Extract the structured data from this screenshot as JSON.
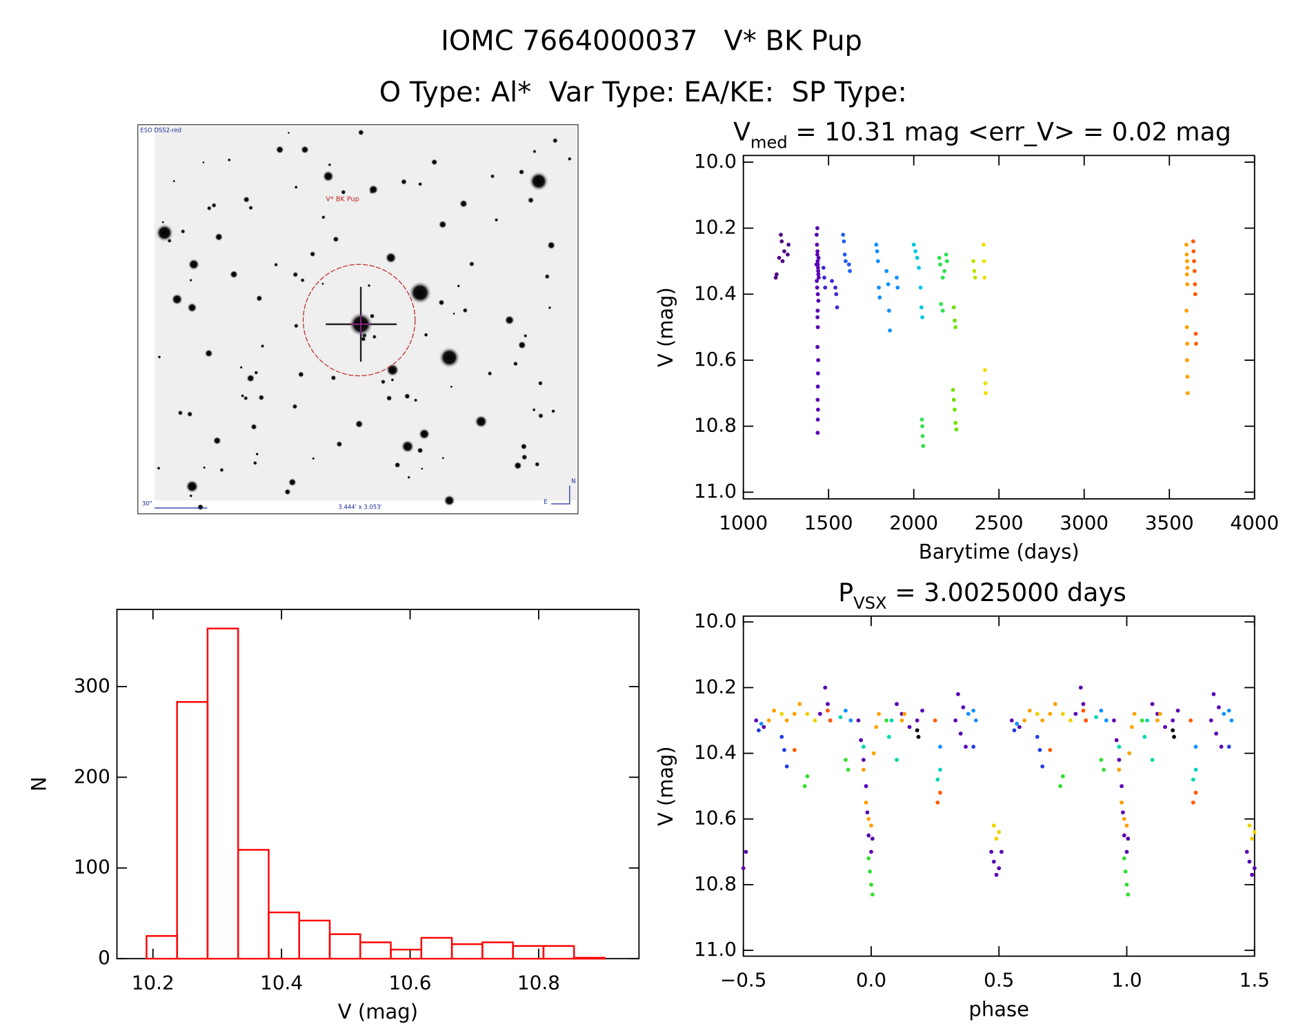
{
  "header": {
    "title": "IOMC 7664000037   V* BK Pup",
    "subtitle": "O Type: Al*  Var Type: EA/KE:  SP Type:"
  },
  "image": {
    "survey": "ESO DSS2-red",
    "target": "V* BK Pup",
    "scale": "30\"",
    "size": "3.444' x 3.053'",
    "north": "N",
    "east": "E"
  },
  "chart_data": [
    {
      "type": "scatter",
      "title": {
        "symbol": "V",
        "subscript": "med",
        "text": " = 10.31 mag <err_V> = 0.02 mag"
      },
      "xlabel": "Barytime (days)",
      "ylabel": "V (mag)",
      "xlim": [
        1000,
        4000
      ],
      "xticks": [
        1000,
        1500,
        2000,
        2500,
        3000,
        3500,
        4000
      ],
      "ylim": [
        11.0,
        10.0
      ],
      "yticks": [
        {
          "value": 10.0,
          "label": "10.0"
        },
        10.2,
        10.4,
        10.6,
        10.8,
        {
          "value": 11.0,
          "label": "11.0"
        }
      ],
      "series": [
        {
          "color": "#500a80",
          "x": [
            1190,
            1195,
            1210,
            1220,
            1225,
            1230,
            1240,
            1260,
            1265
          ],
          "values": [
            10.35,
            10.34,
            10.29,
            10.22,
            10.24,
            10.3,
            10.27,
            10.28,
            10.25
          ]
        },
        {
          "color": "#5a00b4",
          "x": [
            1430,
            1432,
            1434,
            1436,
            1438,
            1440,
            1431,
            1433,
            1435,
            1437,
            1439,
            1441,
            1442,
            1429,
            1434,
            1436,
            1437,
            1435,
            1438,
            1437,
            1436,
            1438,
            1437,
            1436,
            1439,
            1440,
            1437,
            1435
          ],
          "values": [
            10.22,
            10.25,
            10.28,
            10.3,
            10.32,
            10.34,
            10.36,
            10.38,
            10.27,
            10.31,
            10.33,
            10.29,
            10.35,
            10.31,
            10.2,
            10.45,
            10.5,
            10.56,
            10.64,
            10.68,
            10.72,
            10.75,
            10.78,
            10.82,
            10.6,
            10.42,
            10.4,
            10.47
          ]
        },
        {
          "color": "#3a2ad0",
          "x": [
            1470,
            1475,
            1480,
            1520,
            1540,
            1545,
            1550
          ],
          "values": [
            10.32,
            10.35,
            10.38,
            10.36,
            10.38,
            10.4,
            10.44
          ]
        },
        {
          "color": "#2060f0",
          "x": [
            1585,
            1590,
            1595,
            1600,
            1620,
            1625
          ],
          "values": [
            10.22,
            10.24,
            10.28,
            10.3,
            10.31,
            10.33
          ]
        },
        {
          "color": "#1090ff",
          "x": [
            1780,
            1785,
            1790,
            1795,
            1800,
            1840,
            1850,
            1855,
            1860,
            1900,
            1905
          ],
          "values": [
            10.25,
            10.27,
            10.3,
            10.38,
            10.41,
            10.33,
            10.37,
            10.45,
            10.51,
            10.35,
            10.38
          ]
        },
        {
          "color": "#00c8e0",
          "x": [
            2000,
            2010,
            2020,
            2030,
            2040,
            2045,
            2050
          ],
          "values": [
            10.25,
            10.27,
            10.29,
            10.32,
            10.38,
            10.44,
            10.47
          ]
        },
        {
          "color": "#30e050",
          "x": [
            2048,
            2050,
            2052,
            2055,
            2150,
            2155,
            2170,
            2180,
            2190,
            2195,
            2160,
            2170
          ],
          "values": [
            10.78,
            10.8,
            10.83,
            10.86,
            10.29,
            10.31,
            10.35,
            10.33,
            10.28,
            10.3,
            10.43,
            10.45
          ]
        },
        {
          "color": "#70e000",
          "x": [
            2230,
            2235,
            2240,
            2245,
            2250,
            2235,
            2240,
            2245
          ],
          "values": [
            10.69,
            10.72,
            10.75,
            10.79,
            10.81,
            10.44,
            10.48,
            10.5
          ]
        },
        {
          "color": "#c0e000",
          "x": [
            2350,
            2355,
            2360
          ],
          "values": [
            10.3,
            10.33,
            10.35
          ]
        },
        {
          "color": "#f0e000",
          "x": [
            2410,
            2412,
            2415,
            2418,
            2420,
            2422
          ],
          "values": [
            10.25,
            10.3,
            10.35,
            10.63,
            10.67,
            10.7
          ]
        },
        {
          "color": "#ffa000",
          "x": [
            3600,
            3602,
            3604,
            3606,
            3603,
            3605,
            3601,
            3603,
            3605,
            3604,
            3606,
            3607
          ],
          "values": [
            10.25,
            10.28,
            10.3,
            10.32,
            10.34,
            10.37,
            10.45,
            10.5,
            10.55,
            10.6,
            10.65,
            10.7
          ]
        },
        {
          "color": "#ff5a00",
          "x": [
            3640,
            3642,
            3645,
            3648,
            3650,
            3652,
            3655,
            3657
          ],
          "values": [
            10.24,
            10.27,
            10.3,
            10.33,
            10.37,
            10.4,
            10.52,
            10.55
          ]
        }
      ]
    },
    {
      "type": "histogram",
      "xlabel": "V (mag)",
      "ylabel": "N",
      "color": "#ff0000",
      "xlim": [
        10.144,
        10.956
      ],
      "xticks": [
        10.2,
        10.4,
        10.6,
        10.8
      ],
      "ylim": [
        0,
        385
      ],
      "yticks": [
        0,
        100,
        200,
        300
      ],
      "bins": [
        10.19,
        10.2375,
        10.285,
        10.3325,
        10.38,
        10.4275,
        10.475,
        10.5225,
        10.57,
        10.6175,
        10.665,
        10.7125,
        10.76,
        10.8075,
        10.855,
        10.9025
      ],
      "values": [
        25,
        283,
        364,
        120,
        51,
        42,
        27,
        18,
        10,
        23,
        16,
        18,
        14,
        14,
        1
      ]
    },
    {
      "type": "scatter",
      "title": {
        "symbol": "P",
        "subscript": "VSX",
        "text": " = 3.0025000 days"
      },
      "xlabel": "phase",
      "ylabel": "V (mag)",
      "xlim": [
        -0.5,
        1.5
      ],
      "xticks": [
        {
          "value": -0.5,
          "label": "−0.5"
        },
        {
          "value": 0.0,
          "label": "0.0"
        },
        0.5,
        {
          "value": 1.0,
          "label": "1.0"
        },
        1.5
      ],
      "ylim": [
        11.0,
        10.0
      ],
      "yticks": [
        {
          "value": 10.0,
          "label": "10.0"
        },
        10.2,
        10.4,
        10.6,
        10.8,
        {
          "value": 11.0,
          "label": "11.0"
        }
      ],
      "series": [
        {
          "color": "#5a00b4",
          "x": [
            -0.5,
            -0.49,
            -0.45,
            -0.42,
            -0.2,
            -0.18,
            -0.17,
            -0.16,
            -0.05,
            -0.04,
            -0.03,
            -0.02,
            -0.015,
            -0.01,
            0.0,
            0.005,
            0.1,
            0.12,
            0.15,
            0.18,
            0.2,
            0.33,
            0.34,
            0.35,
            0.36,
            0.37,
            0.47,
            0.48,
            0.49,
            0.5,
            0.51,
            0.55,
            0.58,
            0.8,
            0.82,
            0.83,
            0.84,
            0.95,
            0.96,
            0.97,
            0.98,
            0.985,
            0.99,
            1.0,
            1.005,
            1.1,
            1.12,
            1.15,
            1.18,
            1.2,
            1.33,
            1.34,
            1.35,
            1.36,
            1.37,
            1.47,
            1.48,
            1.49,
            1.5
          ],
          "values": [
            10.75,
            10.7,
            10.3,
            10.32,
            10.28,
            10.2,
            10.25,
            10.3,
            10.3,
            10.36,
            10.42,
            10.5,
            10.58,
            10.65,
            10.7,
            10.66,
            10.25,
            10.28,
            10.32,
            10.3,
            10.27,
            10.3,
            10.22,
            10.34,
            10.26,
            10.38,
            10.7,
            10.73,
            10.77,
            10.75,
            10.7,
            10.3,
            10.32,
            10.28,
            10.2,
            10.25,
            10.3,
            10.3,
            10.36,
            10.42,
            10.5,
            10.58,
            10.65,
            10.7,
            10.66,
            10.25,
            10.28,
            10.32,
            10.3,
            10.27,
            10.3,
            10.22,
            10.34,
            10.26,
            10.38,
            10.7,
            10.73,
            10.77,
            10.75
          ]
        },
        {
          "color": "#ffa000",
          "x": [
            -0.4,
            -0.38,
            -0.33,
            -0.3,
            -0.28,
            -0.03,
            -0.02,
            -0.01,
            0.0,
            0.01,
            0.02,
            0.03,
            0.12,
            0.13,
            0.6,
            0.62,
            0.67,
            0.7,
            0.72,
            0.97,
            0.98,
            0.99,
            1.0,
            1.01,
            1.02,
            1.03,
            1.12,
            1.13
          ],
          "values": [
            10.3,
            10.27,
            10.3,
            10.28,
            10.25,
            10.45,
            10.55,
            10.6,
            10.62,
            10.4,
            10.32,
            10.28,
            10.3,
            10.28,
            10.3,
            10.27,
            10.3,
            10.28,
            10.25,
            10.45,
            10.55,
            10.6,
            10.62,
            10.4,
            10.32,
            10.28,
            10.3,
            10.28
          ]
        },
        {
          "color": "#f0d000",
          "x": [
            -0.35,
            -0.25,
            -0.22,
            0.48,
            0.49,
            0.5,
            0.65,
            0.75,
            0.78,
            1.48,
            1.49,
            1.5
          ],
          "values": [
            10.28,
            10.28,
            10.3,
            10.62,
            10.66,
            10.64,
            10.28,
            10.28,
            10.3,
            10.62,
            10.66,
            10.64
          ]
        },
        {
          "color": "#30e030",
          "x": [
            -0.26,
            -0.25,
            -0.1,
            -0.09,
            -0.01,
            -0.005,
            0.0,
            0.005,
            0.06,
            0.74,
            0.75,
            0.9,
            0.91,
            0.99,
            0.995,
            1.0,
            1.005,
            1.06
          ],
          "values": [
            10.5,
            10.47,
            10.42,
            10.45,
            10.72,
            10.76,
            10.8,
            10.83,
            10.3,
            10.5,
            10.47,
            10.42,
            10.45,
            10.72,
            10.76,
            10.8,
            10.83,
            10.3
          ]
        },
        {
          "color": "#00d8b0",
          "x": [
            -0.12,
            -0.03,
            0.07,
            0.08,
            0.1,
            0.26,
            0.27,
            0.88,
            0.97,
            1.07,
            1.08,
            1.1,
            1.26,
            1.27
          ],
          "values": [
            10.29,
            10.38,
            10.35,
            10.3,
            10.42,
            10.48,
            10.45,
            10.29,
            10.38,
            10.35,
            10.3,
            10.42,
            10.48,
            10.45
          ]
        },
        {
          "color": "#1090ff",
          "x": [
            -0.43,
            -0.1,
            -0.08,
            0.27,
            0.38,
            0.4,
            0.41,
            0.57,
            0.9,
            0.92,
            1.27,
            1.38,
            1.4,
            1.41
          ],
          "values": [
            10.31,
            10.27,
            10.3,
            10.38,
            10.28,
            10.27,
            10.3,
            10.31,
            10.27,
            10.3,
            10.38,
            10.28,
            10.27,
            10.3
          ]
        },
        {
          "color": "#2040e0",
          "x": [
            -0.44,
            -0.35,
            -0.34,
            -0.33,
            0.4,
            0.56,
            0.65,
            0.66,
            0.67,
            1.4
          ],
          "values": [
            10.33,
            10.35,
            10.39,
            10.44,
            10.38,
            10.33,
            10.35,
            10.39,
            10.44,
            10.38
          ]
        },
        {
          "color": "#ff5a00",
          "x": [
            -0.3,
            -0.17,
            -0.16,
            0.25,
            0.26,
            0.27,
            0.7,
            0.83,
            0.84,
            1.25,
            1.26,
            1.27
          ],
          "values": [
            10.39,
            10.27,
            10.3,
            10.3,
            10.55,
            10.52,
            10.39,
            10.27,
            10.3,
            10.3,
            10.55,
            10.52
          ]
        },
        {
          "color": "#000000",
          "x": [
            0.18,
            0.185,
            1.18,
            1.185
          ],
          "values": [
            10.33,
            10.35,
            10.33,
            10.35
          ]
        }
      ]
    }
  ]
}
